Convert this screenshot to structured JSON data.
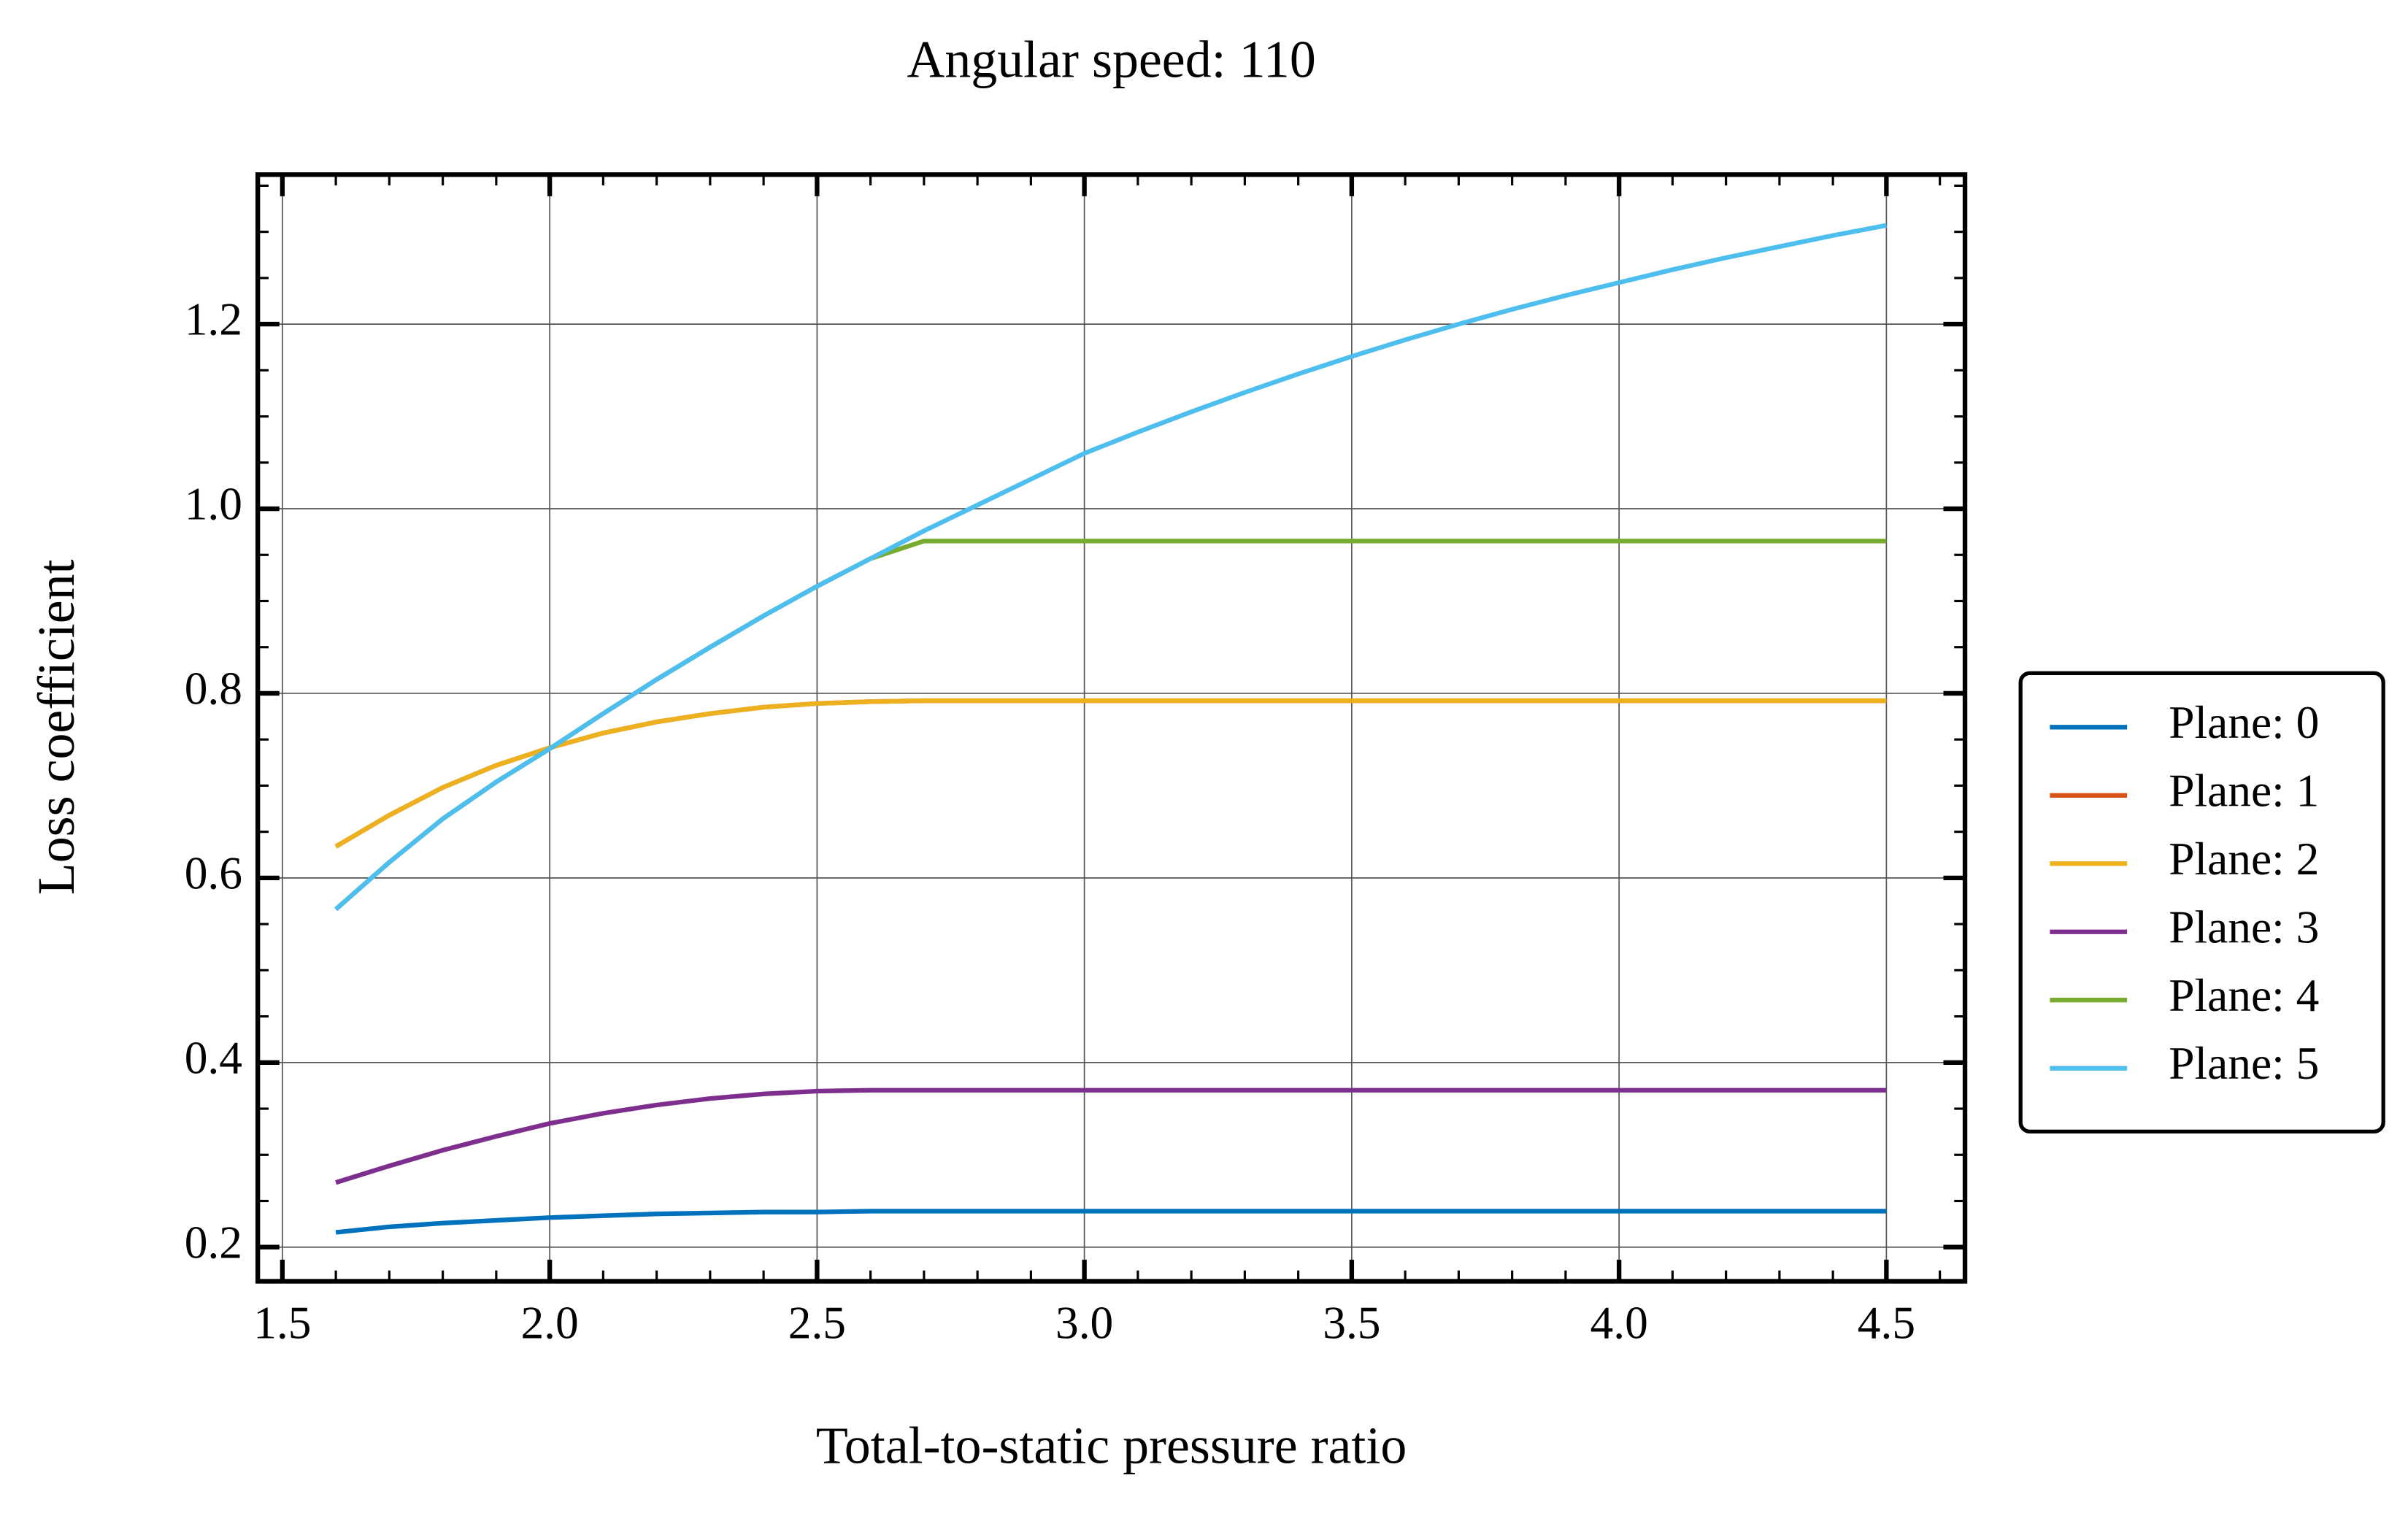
{
  "chart_data": {
    "type": "line",
    "title": "Angular speed: 110",
    "xlabel": "Total-to-static pressure ratio",
    "ylabel": "Loss coefficient",
    "x": [
      1.6,
      1.7,
      1.8,
      1.9,
      2.0,
      2.1,
      2.2,
      2.3,
      2.4,
      2.5,
      2.6,
      2.7,
      2.8,
      2.9,
      3.0,
      3.1,
      3.2,
      3.3,
      3.4,
      3.5,
      3.6,
      3.7,
      3.8,
      3.9,
      4.0,
      4.1,
      4.2,
      4.3,
      4.4,
      4.5
    ],
    "series": [
      {
        "name": "Plane: 0",
        "color": "#0072bd",
        "values": [
          0.216,
          0.222,
          0.226,
          0.229,
          0.232,
          0.234,
          0.236,
          0.237,
          0.238,
          0.238,
          0.239,
          0.239,
          0.239,
          0.239,
          0.239,
          0.239,
          0.239,
          0.239,
          0.239,
          0.239,
          0.239,
          0.239,
          0.239,
          0.239,
          0.239,
          0.239,
          0.239,
          0.239,
          0.239,
          0.239
        ]
      },
      {
        "name": "Plane: 1",
        "color": "#d95319",
        "values": [
          0.634,
          0.668,
          0.698,
          0.722,
          0.741,
          0.757,
          0.769,
          0.778,
          0.785,
          0.789,
          0.791,
          0.792,
          0.792,
          0.792,
          0.792,
          0.792,
          0.792,
          0.792,
          0.792,
          0.792,
          0.792,
          0.792,
          0.792,
          0.792,
          0.792,
          0.792,
          0.792,
          0.792,
          0.792,
          0.792
        ]
      },
      {
        "name": "Plane: 2",
        "color": "#edb120",
        "values": [
          0.634,
          0.668,
          0.698,
          0.722,
          0.741,
          0.757,
          0.769,
          0.778,
          0.785,
          0.789,
          0.791,
          0.792,
          0.792,
          0.792,
          0.792,
          0.792,
          0.792,
          0.792,
          0.792,
          0.792,
          0.792,
          0.792,
          0.792,
          0.792,
          0.792,
          0.792,
          0.792,
          0.792,
          0.792,
          0.792
        ]
      },
      {
        "name": "Plane: 3",
        "color": "#7e2f8e",
        "values": [
          0.27,
          0.288,
          0.305,
          0.32,
          0.334,
          0.345,
          0.354,
          0.361,
          0.366,
          0.369,
          0.37,
          0.37,
          0.37,
          0.37,
          0.37,
          0.37,
          0.37,
          0.37,
          0.37,
          0.37,
          0.37,
          0.37,
          0.37,
          0.37,
          0.37,
          0.37,
          0.37,
          0.37,
          0.37,
          0.37
        ]
      },
      {
        "name": "Plane: 4",
        "color": "#77ac30",
        "values": [
          0.566,
          0.617,
          0.664,
          0.704,
          0.74,
          0.778,
          0.815,
          0.85,
          0.884,
          0.916,
          0.946,
          0.965,
          0.965,
          0.965,
          0.965,
          0.965,
          0.965,
          0.965,
          0.965,
          0.965,
          0.965,
          0.965,
          0.965,
          0.965,
          0.965,
          0.965,
          0.965,
          0.965,
          0.965,
          0.965
        ]
      },
      {
        "name": "Plane: 5",
        "color": "#4dbeee",
        "values": [
          0.566,
          0.617,
          0.664,
          0.704,
          0.74,
          0.778,
          0.815,
          0.85,
          0.884,
          0.916,
          0.946,
          0.976,
          1.004,
          1.032,
          1.06,
          1.083,
          1.105,
          1.126,
          1.146,
          1.165,
          1.183,
          1.2,
          1.216,
          1.231,
          1.245,
          1.259,
          1.272,
          1.284,
          1.296,
          1.307
        ]
      }
    ],
    "xlim": [
      1.454,
      4.647
    ],
    "ylim": [
      0.163,
      1.362
    ],
    "xticks": [
      {
        "value": 1.5,
        "label": "1.5"
      },
      {
        "value": 2.0,
        "label": "2.0"
      },
      {
        "value": 2.5,
        "label": "2.5"
      },
      {
        "value": 3.0,
        "label": "3.0"
      },
      {
        "value": 3.5,
        "label": "3.5"
      },
      {
        "value": 4.0,
        "label": "4.0"
      },
      {
        "value": 4.5,
        "label": "4.5"
      }
    ],
    "yticks": [
      0.2,
      0.4,
      0.6,
      0.8,
      {
        "value": 1.0,
        "label": "1.0"
      },
      1.2
    ],
    "grid": true,
    "minor_ticks": true,
    "legend": "outside right"
  }
}
